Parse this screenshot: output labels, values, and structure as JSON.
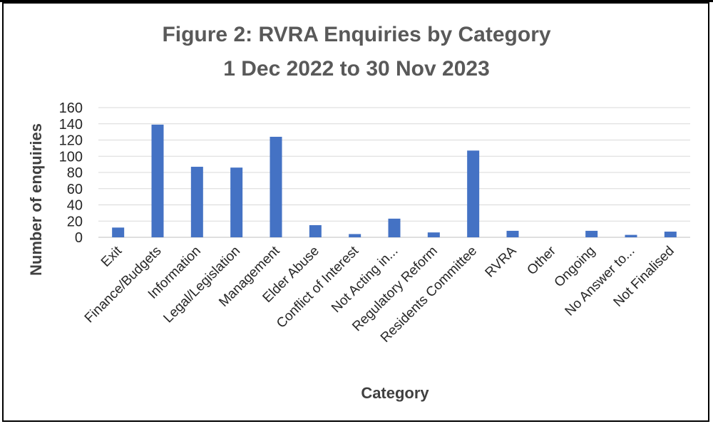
{
  "chart_data": {
    "type": "bar",
    "title": "Figure 2: RVRA Enquiries by Category",
    "subtitle": "1 Dec 2022 to 30 Nov 2023",
    "xlabel": "Category",
    "ylabel": "Number of enquiries",
    "ylim": [
      0,
      160
    ],
    "yticks": [
      "0",
      "20",
      "40",
      "60",
      "80",
      "100",
      "120",
      "140",
      "160"
    ],
    "grid": true,
    "bar_color": "#4472C4",
    "categories": [
      "Exit",
      "Finance/Budgets",
      "Information",
      "Legal/Legislation",
      "Management",
      "Elder Abuse",
      "Conflict of Interest",
      "Not Acting in...",
      "Regulatory Reform",
      "Residents Committee",
      "RVRA",
      "Other",
      "Ongoing",
      "No Answer to...",
      "Not Finalised"
    ],
    "values": [
      12,
      139,
      87,
      86,
      124,
      15,
      4,
      23,
      6,
      107,
      8,
      0,
      8,
      3,
      7
    ]
  }
}
